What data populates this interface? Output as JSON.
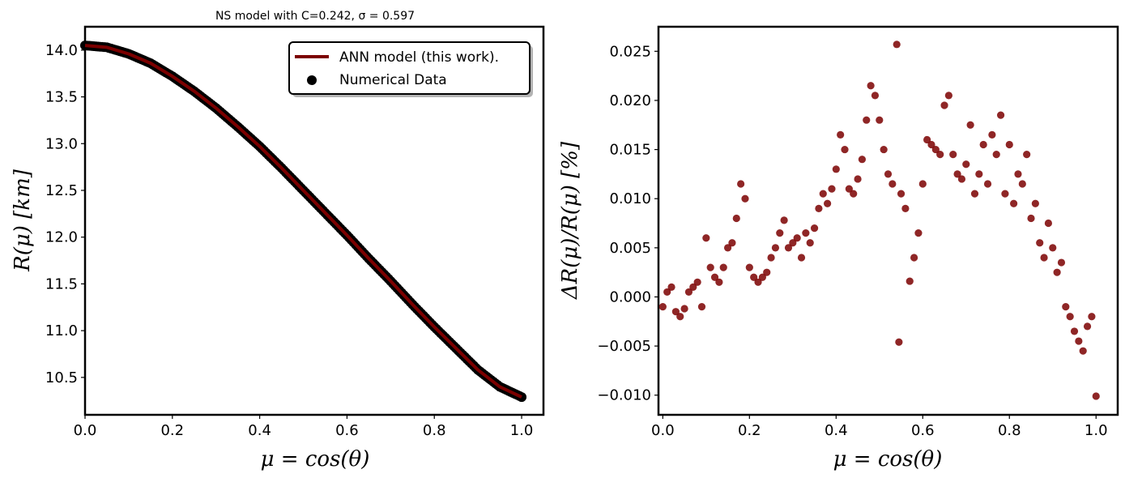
{
  "chart_data": [
    {
      "type": "line",
      "title": "NS model with C=0.242, σ = 0.597",
      "xlabel": "μ = cos(θ)",
      "ylabel": "R(μ) [km]",
      "xlim": [
        0.0,
        1.05
      ],
      "ylim": [
        10.1,
        14.25
      ],
      "xticks": [
        "0.0",
        "0.2",
        "0.4",
        "0.6",
        "0.8",
        "1.0"
      ],
      "yticks": [
        "10.5",
        "11.0",
        "11.5",
        "12.0",
        "12.5",
        "13.0",
        "13.5",
        "14.0"
      ],
      "legend": {
        "placement": "top-right",
        "entries": [
          "ANN model (this work).",
          "Numerical Data"
        ]
      },
      "series": [
        {
          "name": "ANN model (this work).",
          "kind": "line",
          "color": "#7b0000",
          "x": [
            0.0,
            0.05,
            0.1,
            0.15,
            0.2,
            0.25,
            0.3,
            0.35,
            0.4,
            0.45,
            0.5,
            0.55,
            0.6,
            0.65,
            0.7,
            0.75,
            0.8,
            0.85,
            0.9,
            0.95,
            1.0
          ],
          "y": [
            14.05,
            14.03,
            13.96,
            13.86,
            13.72,
            13.56,
            13.38,
            13.18,
            12.97,
            12.74,
            12.5,
            12.26,
            12.02,
            11.77,
            11.53,
            11.28,
            11.04,
            10.81,
            10.58,
            10.4,
            10.29
          ]
        },
        {
          "name": "Numerical Data",
          "kind": "scatter",
          "color": "#000000",
          "x": [
            0.0,
            0.05,
            0.1,
            0.15,
            0.2,
            0.25,
            0.3,
            0.35,
            0.4,
            0.45,
            0.5,
            0.55,
            0.6,
            0.65,
            0.7,
            0.75,
            0.8,
            0.85,
            0.9,
            0.95,
            1.0
          ],
          "y": [
            14.05,
            14.03,
            13.96,
            13.86,
            13.72,
            13.56,
            13.38,
            13.18,
            12.97,
            12.74,
            12.5,
            12.26,
            12.02,
            11.77,
            11.53,
            11.28,
            11.04,
            10.81,
            10.58,
            10.4,
            10.29
          ]
        }
      ]
    },
    {
      "type": "scatter",
      "title": "",
      "xlabel": "μ = cos(θ)",
      "ylabel": "ΔR(μ)/R(μ) [%]",
      "xlim": [
        -0.01,
        1.05
      ],
      "ylim": [
        -0.012,
        0.0275
      ],
      "xticks": [
        "0.0",
        "0.2",
        "0.4",
        "0.6",
        "0.8",
        "1.0"
      ],
      "yticks": [
        "−0.010",
        "−0.005",
        "0.000",
        "0.005",
        "0.010",
        "0.015",
        "0.020",
        "0.025"
      ],
      "series": [
        {
          "color": "#7b0000",
          "x": [
            0.0,
            0.01,
            0.02,
            0.03,
            0.04,
            0.05,
            0.06,
            0.07,
            0.08,
            0.09,
            0.1,
            0.11,
            0.12,
            0.13,
            0.14,
            0.15,
            0.16,
            0.17,
            0.18,
            0.19,
            0.2,
            0.21,
            0.22,
            0.23,
            0.24,
            0.25,
            0.26,
            0.27,
            0.28,
            0.29,
            0.3,
            0.31,
            0.32,
            0.33,
            0.34,
            0.35,
            0.36,
            0.37,
            0.38,
            0.39,
            0.4,
            0.41,
            0.42,
            0.43,
            0.44,
            0.45,
            0.46,
            0.47,
            0.48,
            0.49,
            0.5,
            0.51,
            0.52,
            0.53,
            0.54,
            0.545,
            0.55,
            0.56,
            0.57,
            0.58,
            0.59,
            0.6,
            0.61,
            0.62,
            0.63,
            0.64,
            0.65,
            0.66,
            0.67,
            0.68,
            0.69,
            0.7,
            0.71,
            0.72,
            0.73,
            0.74,
            0.75,
            0.76,
            0.77,
            0.78,
            0.79,
            0.8,
            0.81,
            0.82,
            0.83,
            0.84,
            0.85,
            0.86,
            0.87,
            0.88,
            0.89,
            0.9,
            0.91,
            0.92,
            0.93,
            0.94,
            0.95,
            0.96,
            0.97,
            0.98,
            0.99,
            1.0
          ],
          "y": [
            -0.001,
            0.0005,
            0.001,
            -0.0015,
            -0.002,
            -0.0012,
            0.0005,
            0.001,
            0.0015,
            -0.001,
            0.006,
            0.003,
            0.002,
            0.0015,
            0.003,
            0.005,
            0.0055,
            0.008,
            0.0115,
            0.01,
            0.003,
            0.002,
            0.0015,
            0.002,
            0.0025,
            0.004,
            0.005,
            0.0065,
            0.0078,
            0.005,
            0.0055,
            0.006,
            0.004,
            0.0065,
            0.0055,
            0.007,
            0.009,
            0.0105,
            0.0095,
            0.011,
            0.013,
            0.0165,
            0.015,
            0.011,
            0.0105,
            0.012,
            0.014,
            0.018,
            0.0215,
            0.0205,
            0.018,
            0.015,
            0.0125,
            0.0115,
            0.0257,
            -0.0046,
            0.0105,
            0.009,
            0.0016,
            0.004,
            0.0065,
            0.0115,
            0.016,
            0.0155,
            0.015,
            0.0145,
            0.0195,
            0.0205,
            0.0145,
            0.0125,
            0.012,
            0.0135,
            0.0175,
            0.0105,
            0.0125,
            0.0155,
            0.0115,
            0.0165,
            0.0145,
            0.0185,
            0.0105,
            0.0155,
            0.0095,
            0.0125,
            0.0115,
            0.0145,
            0.008,
            0.0095,
            0.0055,
            0.004,
            0.0075,
            0.005,
            0.0025,
            0.0035,
            -0.001,
            -0.002,
            -0.0035,
            -0.0045,
            -0.0055,
            -0.003,
            -0.002,
            -0.0101
          ]
        }
      ]
    }
  ]
}
